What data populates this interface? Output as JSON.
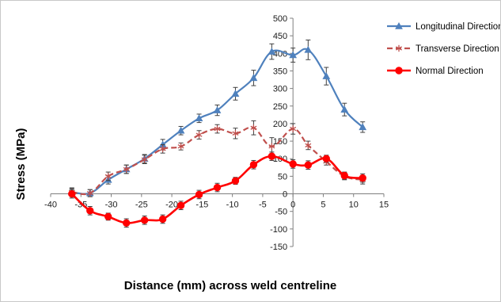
{
  "chart_data": {
    "type": "line",
    "title": "",
    "xlabel": "Distance (mm) across  weld centreline",
    "ylabel": "Stress (MPa)",
    "xlim": [
      -40,
      15
    ],
    "ylim": [
      -150,
      500
    ],
    "x_ticks": [
      -40,
      -35,
      -30,
      -25,
      -20,
      -15,
      -10,
      -5,
      0,
      5,
      10,
      15
    ],
    "y_ticks": [
      -150,
      -100,
      -50,
      0,
      50,
      100,
      150,
      200,
      250,
      300,
      350,
      400,
      450,
      500
    ],
    "grid": false,
    "legend_position": "top-right",
    "series": [
      {
        "name": "Longitudinal Direction",
        "color": "#4f81bd",
        "marker": "triangle",
        "line_style": "solid",
        "x": [
          -36.5,
          -33.5,
          -30.5,
          -27.5,
          -24.5,
          -21.5,
          -18.5,
          -15.5,
          -12.5,
          -9.5,
          -6.5,
          -3.5,
          0,
          2.5,
          5.5,
          8.5,
          11.5
        ],
        "y": [
          5,
          2,
          40,
          70,
          100,
          140,
          180,
          215,
          238,
          285,
          330,
          405,
          395,
          410,
          335,
          240,
          190
        ],
        "err": [
          10,
          10,
          12,
          12,
          12,
          15,
          12,
          12,
          15,
          18,
          22,
          22,
          20,
          28,
          25,
          18,
          15
        ]
      },
      {
        "name": "Transverse Direction",
        "color": "#c0504d",
        "marker": "asterisk",
        "line_style": "dashed",
        "x": [
          -36.5,
          -33.5,
          -30.5,
          -27.5,
          -24.5,
          -21.5,
          -18.5,
          -15.5,
          -12.5,
          -9.5,
          -6.5,
          -3.5,
          0,
          2.5,
          5.5,
          8.5,
          11.5
        ],
        "y": [
          5,
          2,
          50,
          70,
          98,
          128,
          135,
          168,
          185,
          172,
          188,
          135,
          185,
          138,
          92,
          50,
          40
        ],
        "err": [
          12,
          10,
          12,
          12,
          12,
          12,
          10,
          12,
          12,
          15,
          20,
          25,
          15,
          12,
          10,
          10,
          12
        ]
      },
      {
        "name": "Normal Direction",
        "color": "#ff0000",
        "marker": "circle",
        "line_style": "solid",
        "x": [
          -36.5,
          -33.5,
          -30.5,
          -27.5,
          -24.5,
          -21.5,
          -18.5,
          -15.5,
          -12.5,
          -9.5,
          -6.5,
          -3.5,
          0,
          2.5,
          5.5,
          8.5,
          11.5
        ],
        "y": [
          0,
          -48,
          -65,
          -83,
          -75,
          -72,
          -33,
          -2,
          18,
          37,
          83,
          107,
          85,
          82,
          100,
          52,
          45
        ],
        "err": [
          12,
          12,
          10,
          12,
          12,
          12,
          12,
          12,
          12,
          10,
          12,
          12,
          12,
          12,
          10,
          10,
          12
        ]
      }
    ]
  }
}
